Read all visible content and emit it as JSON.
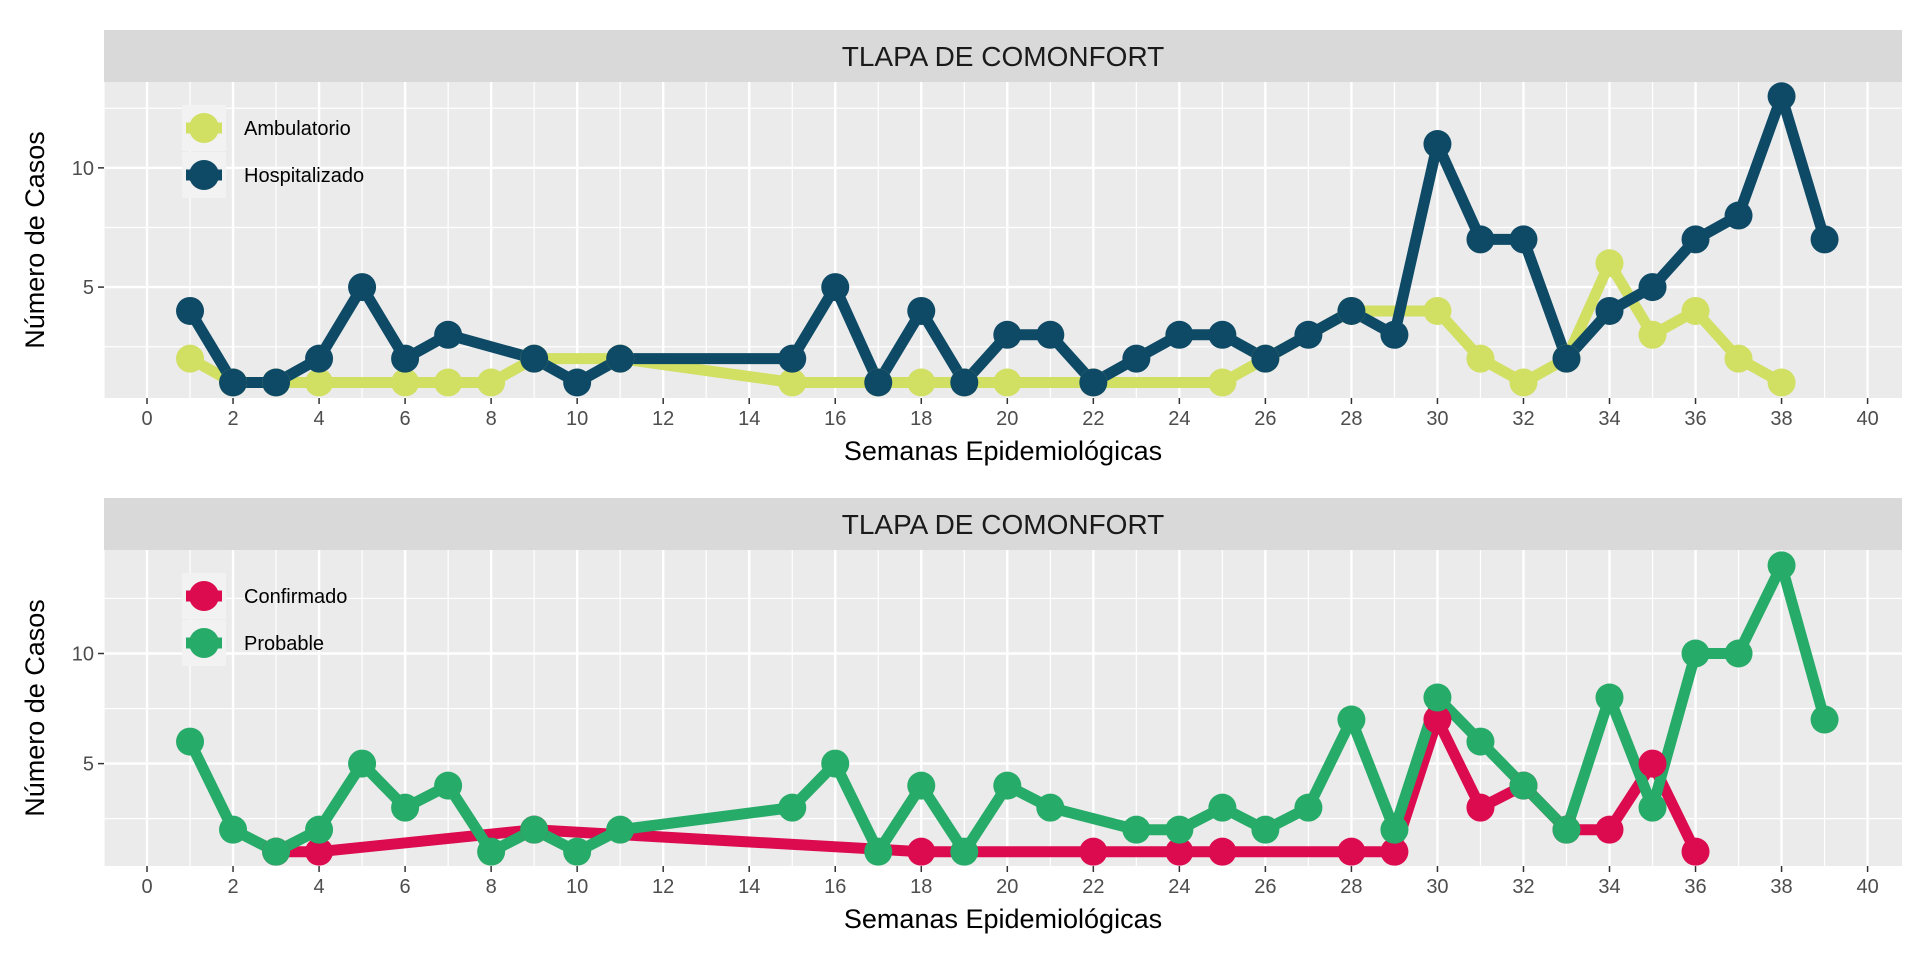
{
  "chart_data": [
    {
      "type": "line",
      "title": "TLAPA DE COMONFORT",
      "xlabel": "Semanas Epidemiológicas",
      "ylabel": "Número de Casos",
      "xlim": [
        -1,
        40.8
      ],
      "ylim": [
        0.35,
        13.6
      ],
      "xticks": [
        0,
        2,
        4,
        6,
        8,
        10,
        12,
        14,
        16,
        18,
        20,
        22,
        24,
        26,
        28,
        30,
        32,
        34,
        36,
        38,
        40
      ],
      "yticks": [
        5,
        10
      ],
      "grid": true,
      "legend_position": "top-left",
      "series": [
        {
          "name": "Ambulatorio",
          "color": "#d1df62",
          "points": [
            [
              1,
              2
            ],
            [
              2,
              1
            ],
            [
              3,
              1
            ],
            [
              4,
              1
            ],
            [
              6,
              1
            ],
            [
              7,
              1
            ],
            [
              8,
              1
            ],
            [
              9,
              2
            ],
            [
              11,
              2
            ],
            [
              15,
              1
            ],
            [
              17,
              1
            ],
            [
              18,
              1
            ],
            [
              19,
              1
            ],
            [
              20,
              1
            ],
            [
              22,
              1
            ],
            [
              25,
              1
            ],
            [
              26,
              2
            ],
            [
              28,
              4
            ],
            [
              30,
              4
            ],
            [
              31,
              2
            ],
            [
              32,
              1
            ],
            [
              33,
              2
            ],
            [
              34,
              6
            ],
            [
              35,
              3
            ],
            [
              36,
              4
            ],
            [
              37,
              2
            ],
            [
              38,
              1
            ]
          ]
        },
        {
          "name": "Hospitalizado",
          "color": "#0e4a66",
          "points": [
            [
              1,
              4
            ],
            [
              2,
              1
            ],
            [
              3,
              1
            ],
            [
              4,
              2
            ],
            [
              5,
              5
            ],
            [
              6,
              2
            ],
            [
              7,
              3
            ],
            [
              9,
              2
            ],
            [
              10,
              1
            ],
            [
              11,
              2
            ],
            [
              15,
              2
            ],
            [
              16,
              5
            ],
            [
              17,
              1
            ],
            [
              18,
              4
            ],
            [
              19,
              1
            ],
            [
              20,
              3
            ],
            [
              21,
              3
            ],
            [
              22,
              1
            ],
            [
              23,
              2
            ],
            [
              24,
              3
            ],
            [
              25,
              3
            ],
            [
              26,
              2
            ],
            [
              27,
              3
            ],
            [
              28,
              4
            ],
            [
              29,
              3
            ],
            [
              30,
              11
            ],
            [
              31,
              7
            ],
            [
              32,
              7
            ],
            [
              33,
              2
            ],
            [
              34,
              4
            ],
            [
              35,
              5
            ],
            [
              36,
              7
            ],
            [
              37,
              8
            ],
            [
              38,
              13
            ],
            [
              39,
              7
            ]
          ]
        }
      ]
    },
    {
      "type": "line",
      "title": "TLAPA DE COMONFORT",
      "xlabel": "Semanas Epidemiológicas",
      "ylabel": "Número de Casos",
      "xlim": [
        -1,
        40.8
      ],
      "ylim": [
        0.35,
        14.7
      ],
      "xticks": [
        0,
        2,
        4,
        6,
        8,
        10,
        12,
        14,
        16,
        18,
        20,
        22,
        24,
        26,
        28,
        30,
        32,
        34,
        36,
        38,
        40
      ],
      "yticks": [
        5,
        10
      ],
      "grid": true,
      "legend_position": "top-left",
      "series": [
        {
          "name": "Confirmado",
          "color": "#dc0a4e",
          "points": [
            [
              3,
              1
            ],
            [
              4,
              1
            ],
            [
              9,
              2
            ],
            [
              18,
              1
            ],
            [
              22,
              1
            ],
            [
              24,
              1
            ],
            [
              25,
              1
            ],
            [
              28,
              1
            ],
            [
              29,
              1
            ],
            [
              30,
              7
            ],
            [
              31,
              3
            ],
            [
              32,
              4
            ],
            [
              33,
              2
            ],
            [
              34,
              2
            ],
            [
              35,
              5
            ],
            [
              36,
              1
            ]
          ]
        },
        {
          "name": "Probable",
          "color": "#27ab69",
          "points": [
            [
              1,
              6
            ],
            [
              2,
              2
            ],
            [
              3,
              1
            ],
            [
              4,
              2
            ],
            [
              5,
              5
            ],
            [
              6,
              3
            ],
            [
              7,
              4
            ],
            [
              8,
              1
            ],
            [
              9,
              2
            ],
            [
              10,
              1
            ],
            [
              11,
              2
            ],
            [
              15,
              3
            ],
            [
              16,
              5
            ],
            [
              17,
              1
            ],
            [
              18,
              4
            ],
            [
              19,
              1
            ],
            [
              20,
              4
            ],
            [
              21,
              3
            ],
            [
              23,
              2
            ],
            [
              24,
              2
            ],
            [
              25,
              3
            ],
            [
              26,
              2
            ],
            [
              27,
              3
            ],
            [
              28,
              7
            ],
            [
              29,
              2
            ],
            [
              30,
              8
            ],
            [
              31,
              6
            ],
            [
              32,
              4
            ],
            [
              33,
              2
            ],
            [
              34,
              8
            ],
            [
              35,
              3
            ],
            [
              36,
              10
            ],
            [
              37,
              10
            ],
            [
              38,
              14
            ],
            [
              39,
              7
            ]
          ]
        }
      ]
    }
  ]
}
